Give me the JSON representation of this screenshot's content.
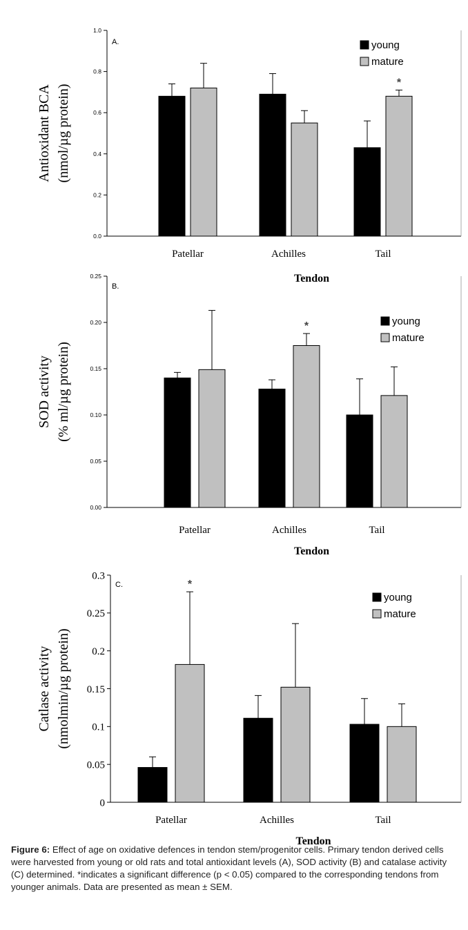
{
  "figure": {
    "caption_label": "Figure 6:",
    "caption_text": " Effect of age on oxidative defences in tendon stem/progenitor cells. Primary tendon derived cells were harvested from young or old rats and total antioxidant levels (A), SOD activity (B) and catalase activity (C) determined. *indicates a significant difference (p < 0.05) compared to the corresponding tendons from younger animals. Data are presented as mean ± SEM."
  },
  "colors": {
    "young": "#000000",
    "mature": "#c0c0c0",
    "axis": "#000000"
  },
  "chart_data": [
    {
      "type": "bar",
      "panel_label": "A.",
      "ylabel_line1": "Antioxidant BCA",
      "ylabel_line2": "(nmol/µg protein)",
      "xlabel": "Tendon",
      "categories": [
        "Patellar",
        "Achilles",
        "Tail"
      ],
      "ylim": [
        0,
        1.0
      ],
      "yticks": [
        "0.0",
        "0.2",
        "0.4",
        "0.6",
        "0.8",
        "1.0"
      ],
      "series": [
        {
          "name": "young",
          "values": [
            0.68,
            0.69,
            0.43
          ],
          "errors": [
            0.06,
            0.1,
            0.13
          ]
        },
        {
          "name": "mature",
          "values": [
            0.72,
            0.55,
            0.68
          ],
          "errors": [
            0.12,
            0.06,
            0.03
          ]
        }
      ],
      "significance": [
        {
          "series": "mature",
          "category": "Tail",
          "text": "*"
        }
      ],
      "legend": "top-right"
    },
    {
      "type": "bar",
      "panel_label": "B.",
      "ylabel_line1": "SOD activity",
      "ylabel_line2": "(% ml/µg protein)",
      "xlabel": "Tendon",
      "categories": [
        "Patellar",
        "Achilles",
        "Tail"
      ],
      "ylim": [
        0,
        0.25
      ],
      "yticks": [
        "0.00",
        "0.05",
        "0.10",
        "0.15",
        "0.20",
        "0.25"
      ],
      "series": [
        {
          "name": "young",
          "values": [
            0.14,
            0.128,
            0.1
          ],
          "errors": [
            0.006,
            0.01,
            0.039
          ]
        },
        {
          "name": "mature",
          "values": [
            0.149,
            0.175,
            0.121
          ],
          "errors": [
            0.064,
            0.013,
            0.031
          ]
        }
      ],
      "significance": [
        {
          "series": "mature",
          "category": "Achilles",
          "text": "*"
        }
      ],
      "legend": "top-right"
    },
    {
      "type": "bar",
      "panel_label": "C.",
      "ylabel_line1": "Catlase activity",
      "ylabel_line2": "(nmolmin/µg protein)",
      "xlabel": "Tendon",
      "categories": [
        "Patellar",
        "Achilles",
        "Tail"
      ],
      "ylim": [
        0,
        0.3
      ],
      "yticks": [
        "0",
        "0.05",
        "0.1",
        "0.15",
        "0.2",
        "0.25",
        "0.3"
      ],
      "series": [
        {
          "name": "young",
          "values": [
            0.046,
            0.111,
            0.103
          ],
          "errors": [
            0.014,
            0.03,
            0.034
          ]
        },
        {
          "name": "mature",
          "values": [
            0.182,
            0.152,
            0.1
          ],
          "errors": [
            0.096,
            0.084,
            0.03
          ]
        }
      ],
      "significance": [
        {
          "series": "mature",
          "category": "Patellar",
          "text": "*"
        }
      ],
      "legend": "top-right"
    }
  ]
}
